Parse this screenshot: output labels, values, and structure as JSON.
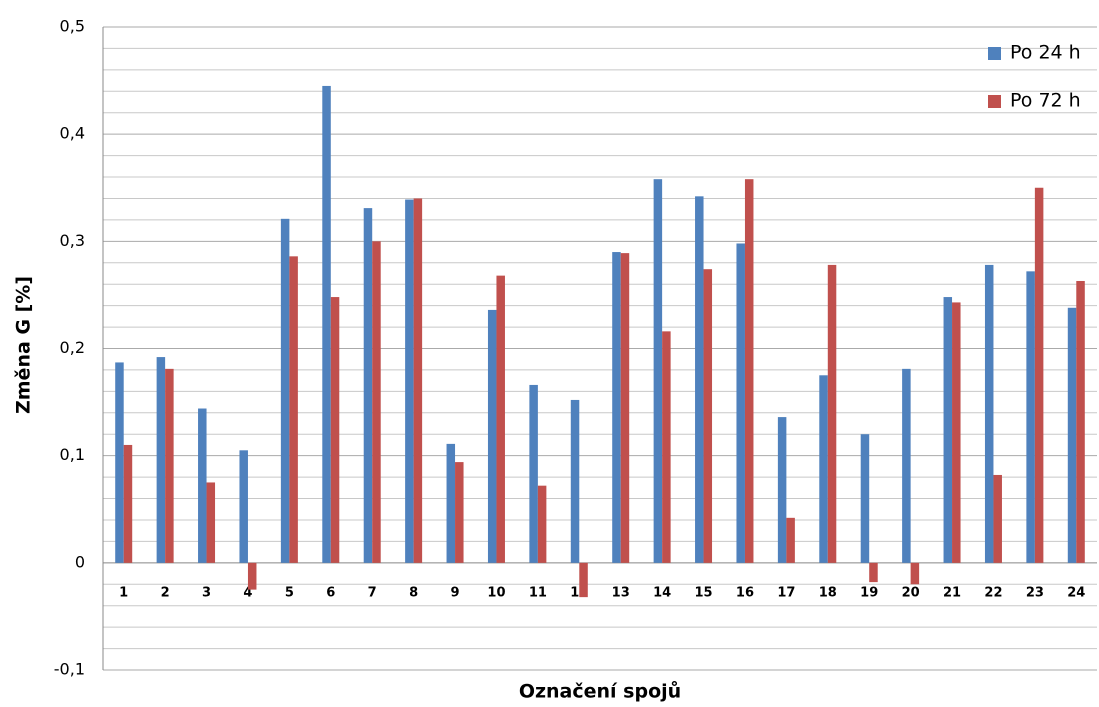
{
  "chart_data": {
    "type": "bar",
    "y_label": "Změna G [%]",
    "x_label": "Označení spojů",
    "categories": [
      "1",
      "2",
      "3",
      "4",
      "5",
      "6",
      "7",
      "8",
      "9",
      "10",
      "11",
      "12",
      "13",
      "14",
      "15",
      "16",
      "17",
      "18",
      "19",
      "20",
      "21",
      "22",
      "23",
      "24"
    ],
    "series": [
      {
        "name": "Po 24 h",
        "color": "#4f81bd",
        "values": [
          0.187,
          0.192,
          0.144,
          0.105,
          0.321,
          0.445,
          0.331,
          0.339,
          0.111,
          0.236,
          0.166,
          0.152,
          0.29,
          0.358,
          0.342,
          0.298,
          0.136,
          0.175,
          0.12,
          0.181,
          0.248,
          0.278,
          0.272,
          0.238
        ]
      },
      {
        "name": "Po 72 h",
        "color": "#c0504d",
        "values": [
          0.11,
          0.181,
          0.075,
          -0.025,
          0.286,
          0.248,
          0.3,
          0.34,
          0.094,
          0.268,
          0.072,
          -0.032,
          0.289,
          0.216,
          0.274,
          0.358,
          0.042,
          0.278,
          -0.018,
          -0.02,
          0.243,
          0.082,
          0.35,
          0.263
        ]
      }
    ],
    "ylim": [
      -0.1,
      0.5
    ],
    "yticks": [
      {
        "value": -0.1,
        "label": "-0,1"
      },
      0,
      {
        "value": 0.1,
        "label": "0,1"
      },
      {
        "value": 0.2,
        "label": "0,2"
      },
      {
        "value": 0.3,
        "label": "0,3"
      },
      {
        "value": 0.4,
        "label": "0,4"
      },
      {
        "value": 0.5,
        "label": "0,5"
      }
    ],
    "minor_grid": [
      -0.08,
      -0.06,
      -0.04,
      -0.02,
      0.02,
      0.04,
      0.06,
      0.08,
      0.12,
      0.14,
      0.16,
      0.18,
      0.22,
      0.24,
      0.26,
      0.28,
      0.32,
      0.34,
      0.36,
      0.38,
      0.42,
      0.44,
      0.46,
      0.48
    ],
    "grid": true,
    "legend": "top-right"
  }
}
